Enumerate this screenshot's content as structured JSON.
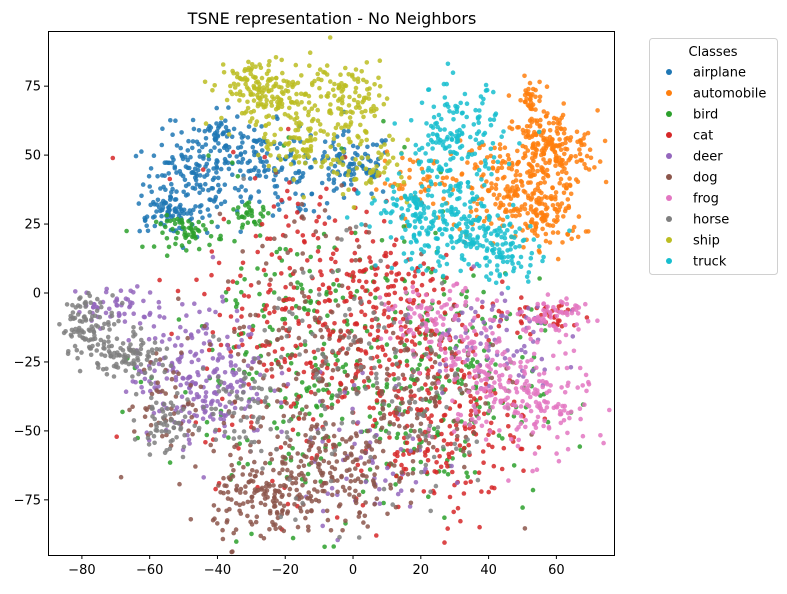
{
  "chart_data": {
    "type": "scatter",
    "title": "TSNE representation - No Neighbors",
    "xlabel": "",
    "ylabel": "",
    "xlim": [
      -90,
      77
    ],
    "ylim": [
      -95,
      95
    ],
    "xticks": [
      -80,
      -60,
      -40,
      -20,
      0,
      20,
      40,
      60
    ],
    "yticks": [
      -75,
      -50,
      -25,
      0,
      25,
      50,
      75
    ],
    "grid": false,
    "legend": {
      "title": "Classes",
      "placement": "outside-right-top"
    },
    "series": [
      {
        "name": "airplane",
        "color": "#1f77b4",
        "clusters": [
          {
            "cx": -48,
            "cy": 40,
            "sx": 7,
            "sy": 9,
            "n": 160
          },
          {
            "cx": -40,
            "cy": 58,
            "sx": 4,
            "sy": 4,
            "n": 50
          },
          {
            "cx": -28,
            "cy": 50,
            "sx": 6,
            "sy": 6,
            "n": 80
          },
          {
            "cx": -55,
            "cy": 28,
            "sx": 4,
            "sy": 3,
            "n": 50
          },
          {
            "cx": 0,
            "cy": 46,
            "sx": 6,
            "sy": 6,
            "n": 90
          },
          {
            "cx": -15,
            "cy": 40,
            "sx": 8,
            "sy": 7,
            "n": 60
          }
        ]
      },
      {
        "name": "automobile",
        "color": "#ff7f0e",
        "clusters": [
          {
            "cx": 58,
            "cy": 52,
            "sx": 7,
            "sy": 7,
            "n": 200
          },
          {
            "cx": 45,
            "cy": 38,
            "sx": 8,
            "sy": 9,
            "n": 180
          },
          {
            "cx": 58,
            "cy": 28,
            "sx": 5,
            "sy": 6,
            "n": 90
          },
          {
            "cx": 52,
            "cy": 70,
            "sx": 2,
            "sy": 4,
            "n": 40
          },
          {
            "cx": 18,
            "cy": 40,
            "sx": 5,
            "sy": 5,
            "n": 40
          }
        ]
      },
      {
        "name": "bird",
        "color": "#2ca02c",
        "clusters": [
          {
            "cx": -48,
            "cy": 22,
            "sx": 5,
            "sy": 3,
            "n": 60
          },
          {
            "cx": -30,
            "cy": 28,
            "sx": 3,
            "sy": 2,
            "n": 30
          },
          {
            "cx": -10,
            "cy": -25,
            "sx": 22,
            "sy": 30,
            "n": 280
          },
          {
            "cx": 25,
            "cy": -35,
            "sx": 15,
            "sy": 20,
            "n": 180
          }
        ]
      },
      {
        "name": "cat",
        "color": "#d62728",
        "clusters": [
          {
            "cx": -10,
            "cy": -10,
            "sx": 18,
            "sy": 28,
            "n": 320
          },
          {
            "cx": 25,
            "cy": -45,
            "sx": 12,
            "sy": 18,
            "n": 220
          },
          {
            "cx": 10,
            "cy": 0,
            "sx": 10,
            "sy": 12,
            "n": 100
          },
          {
            "cx": 55,
            "cy": -8,
            "sx": 8,
            "sy": 3,
            "n": 40
          }
        ]
      },
      {
        "name": "deer",
        "color": "#9467bd",
        "clusters": [
          {
            "cx": -45,
            "cy": -30,
            "sx": 10,
            "sy": 12,
            "n": 230
          },
          {
            "cx": -70,
            "cy": -5,
            "sx": 6,
            "sy": 4,
            "n": 50
          },
          {
            "cx": 40,
            "cy": -15,
            "sx": 10,
            "sy": 10,
            "n": 80
          },
          {
            "cx": 5,
            "cy": -60,
            "sx": 10,
            "sy": 15,
            "n": 60
          }
        ]
      },
      {
        "name": "dog",
        "color": "#8c564b",
        "clusters": [
          {
            "cx": -25,
            "cy": -75,
            "sx": 8,
            "sy": 8,
            "n": 160
          },
          {
            "cx": -5,
            "cy": -65,
            "sx": 10,
            "sy": 10,
            "n": 150
          },
          {
            "cx": -15,
            "cy": -20,
            "sx": 15,
            "sy": 25,
            "n": 160
          },
          {
            "cx": 20,
            "cy": -40,
            "sx": 12,
            "sy": 15,
            "n": 100
          },
          {
            "cx": -55,
            "cy": -40,
            "sx": 6,
            "sy": 10,
            "n": 50
          }
        ]
      },
      {
        "name": "frog",
        "color": "#e377c2",
        "clusters": [
          {
            "cx": 50,
            "cy": -40,
            "sx": 10,
            "sy": 10,
            "n": 190
          },
          {
            "cx": 60,
            "cy": -8,
            "sx": 5,
            "sy": 3,
            "n": 60
          },
          {
            "cx": 25,
            "cy": -10,
            "sx": 8,
            "sy": 6,
            "n": 100
          },
          {
            "cx": 40,
            "cy": -25,
            "sx": 8,
            "sy": 6,
            "n": 60
          }
        ]
      },
      {
        "name": "horse",
        "color": "#7f7f7f",
        "clusters": [
          {
            "cx": -78,
            "cy": -12,
            "sx": 4,
            "sy": 6,
            "n": 100
          },
          {
            "cx": -65,
            "cy": -22,
            "sx": 5,
            "sy": 5,
            "n": 90
          },
          {
            "cx": -55,
            "cy": -48,
            "sx": 4,
            "sy": 6,
            "n": 60
          },
          {
            "cx": -35,
            "cy": -40,
            "sx": 5,
            "sy": 8,
            "n": 50
          },
          {
            "cx": -10,
            "cy": -30,
            "sx": 15,
            "sy": 25,
            "n": 100
          },
          {
            "cx": 20,
            "cy": -50,
            "sx": 8,
            "sy": 15,
            "n": 50
          }
        ]
      },
      {
        "name": "ship",
        "color": "#bcbd22",
        "clusters": [
          {
            "cx": -22,
            "cy": 72,
            "sx": 9,
            "sy": 6,
            "n": 150
          },
          {
            "cx": 0,
            "cy": 70,
            "sx": 6,
            "sy": 8,
            "n": 100
          },
          {
            "cx": -15,
            "cy": 55,
            "sx": 6,
            "sy": 6,
            "n": 80
          },
          {
            "cx": -30,
            "cy": 75,
            "sx": 4,
            "sy": 5,
            "n": 50
          },
          {
            "cx": 5,
            "cy": 45,
            "sx": 6,
            "sy": 5,
            "n": 60
          }
        ]
      },
      {
        "name": "truck",
        "color": "#17becf",
        "clusters": [
          {
            "cx": 30,
            "cy": 55,
            "sx": 7,
            "sy": 10,
            "n": 170
          },
          {
            "cx": 28,
            "cy": 22,
            "sx": 10,
            "sy": 7,
            "n": 200
          },
          {
            "cx": 45,
            "cy": 15,
            "sx": 5,
            "sy": 6,
            "n": 80
          },
          {
            "cx": 20,
            "cy": 35,
            "sx": 6,
            "sy": 5,
            "n": 50
          }
        ]
      }
    ]
  }
}
